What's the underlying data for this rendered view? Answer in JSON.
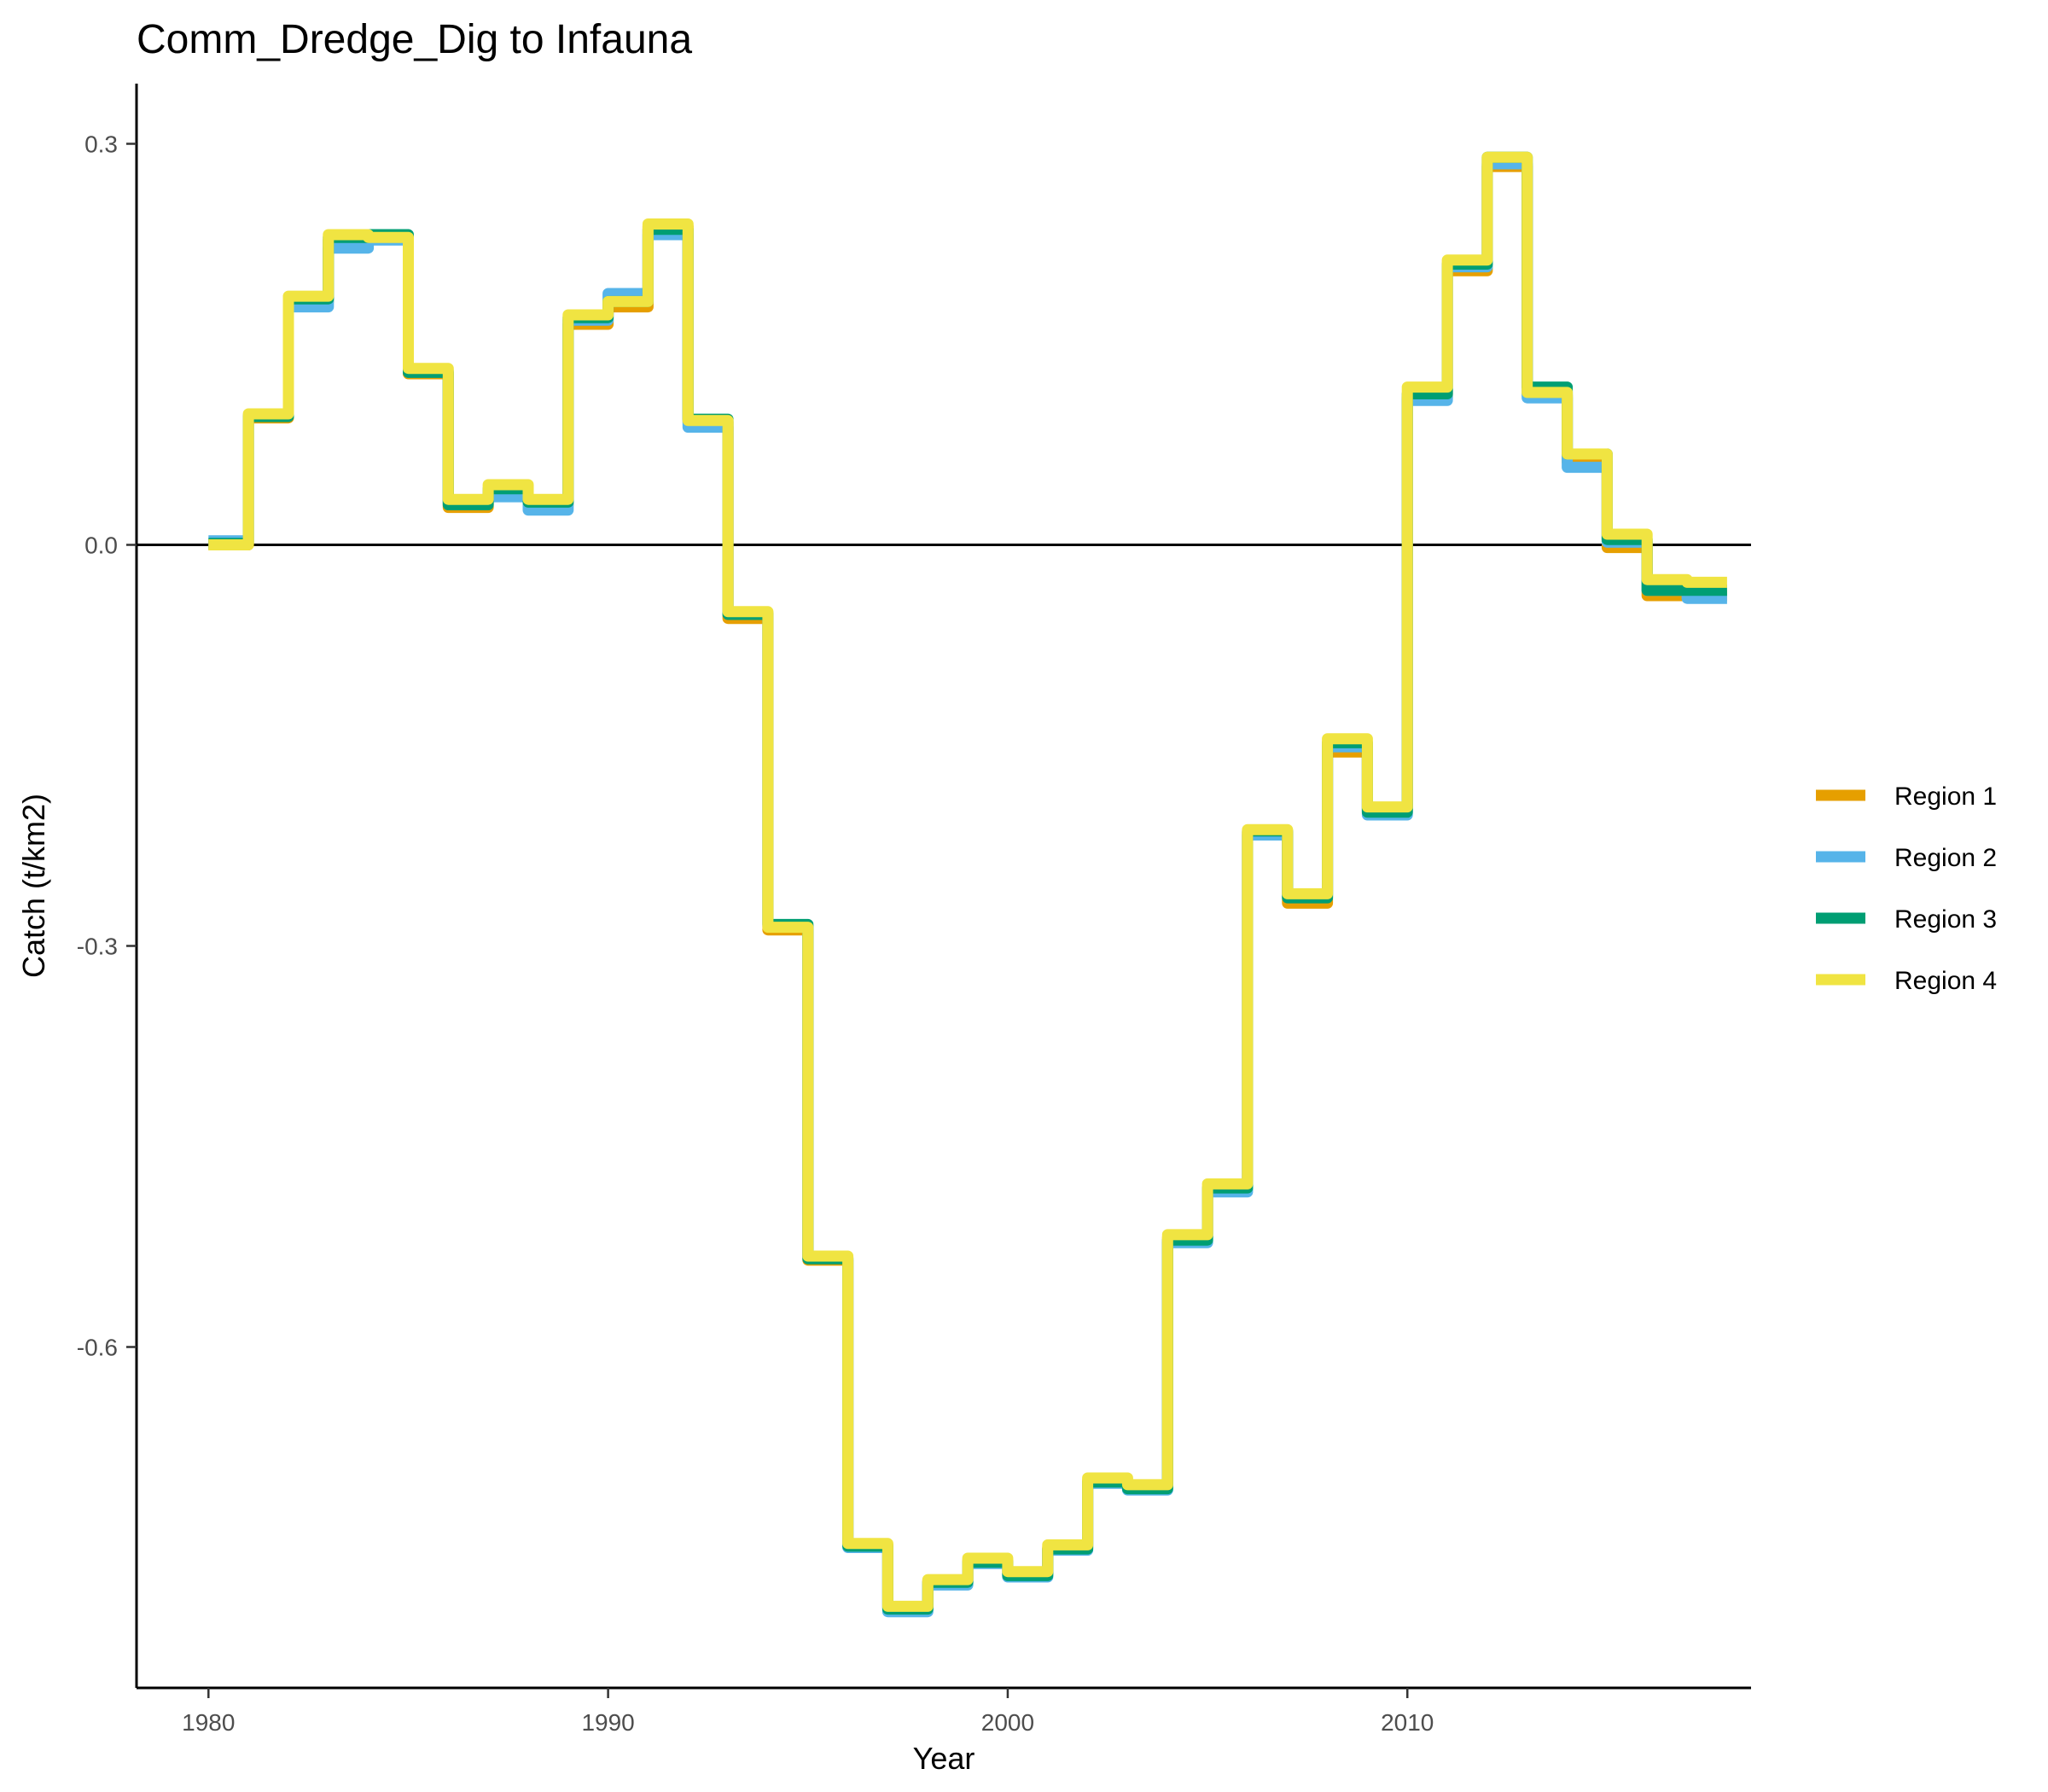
{
  "chart_data": {
    "type": "line",
    "title": "Comm_Dredge_Dig to Infauna",
    "xlabel": "Year",
    "ylabel": "Catch (t/km2)",
    "xlim": [
      1978.2,
      2018.6
    ],
    "ylim": [
      -0.855,
      0.345
    ],
    "x_ticks": [
      1980,
      1990,
      2000,
      2010
    ],
    "x_tick_labels": [
      "1980",
      "1990",
      "2000",
      "2010"
    ],
    "y_ticks": [
      0.3,
      0.0,
      -0.3,
      -0.6
    ],
    "y_tick_labels": [
      "0.3",
      "0.0",
      "-0.3",
      "-0.6"
    ],
    "grid": false,
    "legend_position": "right",
    "zero_line": true,
    "step_shape": "hv",
    "x": [
      1980,
      1981,
      1982,
      1983,
      1984,
      1985,
      1986,
      1987,
      1988,
      1989,
      1990,
      1991,
      1992,
      1993,
      1994,
      1995,
      1996,
      1997,
      1998,
      1999,
      2000,
      2001,
      2002,
      2003,
      2004,
      2005,
      2006,
      2007,
      2008,
      2009,
      2010,
      2011,
      2012,
      2013,
      2014,
      2015,
      2016,
      2017
    ],
    "series": [
      {
        "name": "Region 1",
        "color": "#E69F00",
        "values": [
          0.0,
          0.095,
          0.182,
          0.228,
          0.23,
          0.128,
          0.028,
          0.04,
          0.03,
          0.165,
          0.178,
          0.238,
          0.092,
          -0.055,
          -0.288,
          -0.535,
          -0.748,
          -0.795,
          -0.775,
          -0.76,
          -0.77,
          -0.75,
          -0.7,
          -0.705,
          -0.518,
          -0.482,
          -0.215,
          -0.268,
          -0.155,
          -0.198,
          0.11,
          0.205,
          0.283,
          0.112,
          0.062,
          -0.002,
          -0.038,
          -0.038
        ]
      },
      {
        "name": "Region 2",
        "color": "#56B4E9",
        "values": [
          0.003,
          0.097,
          0.178,
          0.222,
          0.228,
          0.13,
          0.032,
          0.036,
          0.026,
          0.168,
          0.188,
          0.232,
          0.088,
          -0.051,
          -0.285,
          -0.533,
          -0.75,
          -0.798,
          -0.778,
          -0.762,
          -0.772,
          -0.752,
          -0.702,
          -0.707,
          -0.522,
          -0.484,
          -0.217,
          -0.263,
          -0.151,
          -0.202,
          0.108,
          0.208,
          0.285,
          0.11,
          0.058,
          0.002,
          -0.034,
          -0.04
        ]
      },
      {
        "name": "Region 3",
        "color": "#009E73",
        "values": [
          0.001,
          0.096,
          0.184,
          0.23,
          0.232,
          0.129,
          0.03,
          0.042,
          0.032,
          0.17,
          0.182,
          0.236,
          0.094,
          -0.052,
          -0.284,
          -0.534,
          -0.749,
          -0.796,
          -0.776,
          -0.761,
          -0.771,
          -0.751,
          -0.701,
          -0.706,
          -0.52,
          -0.481,
          -0.214,
          -0.264,
          -0.148,
          -0.2,
          0.113,
          0.21,
          0.29,
          0.118,
          0.068,
          0.004,
          -0.034,
          -0.034
        ]
      },
      {
        "name": "Region 4",
        "color": "#F0E442",
        "values": [
          0.0,
          0.098,
          0.186,
          0.232,
          0.23,
          0.132,
          0.034,
          0.045,
          0.034,
          0.172,
          0.182,
          0.24,
          0.093,
          -0.05,
          -0.286,
          -0.532,
          -0.747,
          -0.794,
          -0.774,
          -0.758,
          -0.768,
          -0.748,
          -0.698,
          -0.703,
          -0.516,
          -0.478,
          -0.213,
          -0.261,
          -0.145,
          -0.196,
          0.118,
          0.213,
          0.29,
          0.114,
          0.068,
          0.008,
          -0.026,
          -0.028
        ]
      }
    ]
  }
}
